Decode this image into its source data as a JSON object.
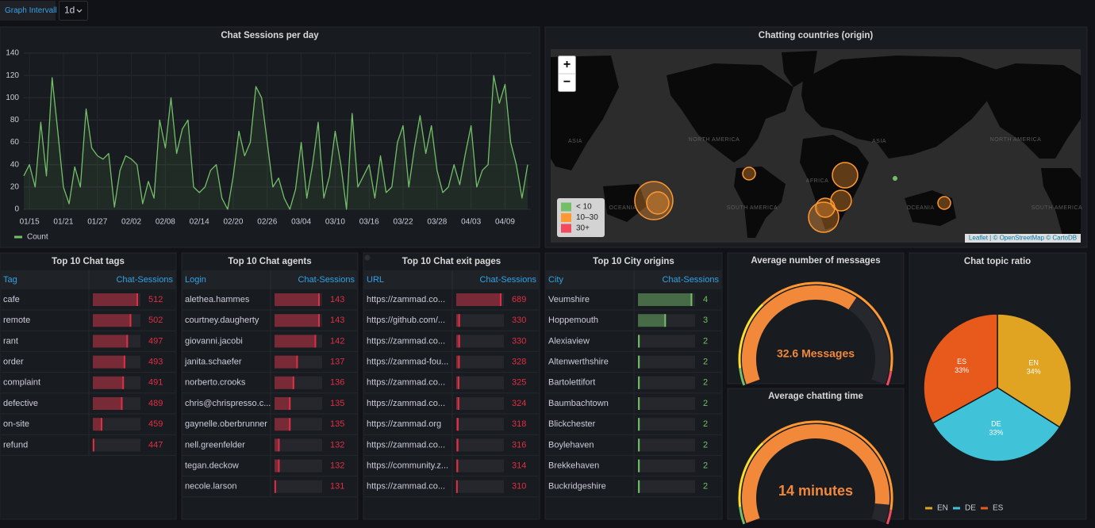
{
  "header": {
    "label": "Graph Intervall",
    "interval": "1d"
  },
  "chart_data": {
    "type": "line",
    "title": "Chat Sessions per day",
    "x": [
      "01/14",
      "01/15",
      "01/16",
      "01/17",
      "01/18",
      "01/19",
      "01/20",
      "01/21",
      "01/22",
      "01/23",
      "01/24",
      "01/25",
      "01/26",
      "01/27",
      "01/28",
      "01/29",
      "01/30",
      "01/31",
      "02/01",
      "02/02",
      "02/03",
      "02/04",
      "02/05",
      "02/06",
      "02/07",
      "02/08",
      "02/09",
      "02/10",
      "02/11",
      "02/12",
      "02/13",
      "02/14",
      "02/15",
      "02/16",
      "02/17",
      "02/18",
      "02/19",
      "02/20",
      "02/21",
      "02/22",
      "02/23",
      "02/24",
      "02/25",
      "02/26",
      "02/27",
      "02/28",
      "03/01",
      "03/02",
      "03/03",
      "03/04",
      "03/05",
      "03/06",
      "03/07",
      "03/08",
      "03/09",
      "03/10",
      "03/11",
      "03/12",
      "03/13",
      "03/14",
      "03/15",
      "03/16",
      "03/17",
      "03/18",
      "03/19",
      "03/20",
      "03/21",
      "03/22",
      "03/23",
      "03/24",
      "03/25",
      "03/26",
      "03/27",
      "03/28",
      "03/29",
      "03/30",
      "03/31",
      "04/01",
      "04/02",
      "04/03",
      "04/04",
      "04/05",
      "04/06",
      "04/07",
      "04/08",
      "04/09",
      "04/10",
      "04/11",
      "04/12",
      "04/13"
    ],
    "xticks": [
      "01/15",
      "01/21",
      "01/27",
      "02/02",
      "02/08",
      "02/14",
      "02/20",
      "02/26",
      "03/04",
      "03/10",
      "03/16",
      "03/22",
      "03/28",
      "04/03",
      "04/09"
    ],
    "ylim": [
      0,
      140
    ],
    "yticks": [
      0,
      20,
      40,
      60,
      80,
      100,
      120,
      140
    ],
    "grid": true,
    "series": [
      {
        "name": "Count",
        "color": "#73bf69",
        "values": [
          30,
          40,
          20,
          78,
          30,
          118,
          70,
          20,
          5,
          38,
          20,
          90,
          55,
          48,
          45,
          50,
          2,
          35,
          48,
          45,
          40,
          5,
          25,
          10,
          80,
          55,
          100,
          50,
          72,
          80,
          20,
          15,
          20,
          35,
          40,
          10,
          0,
          30,
          70,
          48,
          60,
          110,
          100,
          60,
          20,
          28,
          10,
          0,
          18,
          60,
          10,
          40,
          78,
          10,
          30,
          70,
          40,
          0,
          86,
          20,
          30,
          40,
          10,
          48,
          15,
          20,
          60,
          75,
          20,
          55,
          84,
          50,
          75,
          35,
          15,
          20,
          40,
          22,
          50,
          75,
          20,
          35,
          40,
          120,
          95,
          112,
          60,
          40,
          10,
          40
        ]
      }
    ]
  },
  "map": {
    "title": "Chatting countries (origin)",
    "zoom_in": "+",
    "zoom_out": "−",
    "regions": [
      "ASIA",
      "OCEANIA",
      "NORTH AMERICA",
      "SOUTH AMERICA",
      "AFRICA",
      "ASIA",
      "OCEANIA",
      "NORTH AMERICA",
      "SOUTH AMERICA"
    ],
    "legend": [
      {
        "label": "< 10",
        "color": "#73bf69"
      },
      {
        "label": "10–30",
        "color": "#ff9830"
      },
      {
        "label": "30+",
        "color": "#f2495c"
      }
    ],
    "attribution": "Leaflet | © OpenStreetMap © CartoDB"
  },
  "tables": [
    {
      "title": "Top 10 Chat tags",
      "columns": [
        "Tag",
        "Chat-Sessions"
      ],
      "color": "#e02f44",
      "rows": [
        [
          "cafe",
          512
        ],
        [
          "remote",
          502
        ],
        [
          "rant",
          497
        ],
        [
          "order",
          493
        ],
        [
          "complaint",
          491
        ],
        [
          "defective",
          489
        ],
        [
          "on-site",
          459
        ],
        [
          "refund",
          447
        ]
      ]
    },
    {
      "title": "Top 10 Chat agents",
      "columns": [
        "Login",
        "Chat-Sessions"
      ],
      "color": "#e02f44",
      "rows": [
        [
          "alethea.hammes",
          143
        ],
        [
          "courtney.daugherty",
          143
        ],
        [
          "giovanni.jacobi",
          142
        ],
        [
          "janita.schaefer",
          137
        ],
        [
          "norberto.crooks",
          136
        ],
        [
          "chris@chrispresso.c...",
          135
        ],
        [
          "gaynelle.oberbrunner",
          135
        ],
        [
          "nell.greenfelder",
          132
        ],
        [
          "tegan.deckow",
          132
        ],
        [
          "necole.larson",
          131
        ]
      ]
    },
    {
      "title": "Top 10 Chat exit pages",
      "columns": [
        "URL",
        "Chat-Sessions"
      ],
      "color": "#e02f44",
      "rows": [
        [
          "https://zammad.co...",
          689
        ],
        [
          "https://github.com/...",
          330
        ],
        [
          "https://zammad.co...",
          330
        ],
        [
          "https://zammad-fou...",
          328
        ],
        [
          "https://zammad.co...",
          325
        ],
        [
          "https://zammad.co...",
          324
        ],
        [
          "https://zammad.org",
          318
        ],
        [
          "https://zammad.co...",
          316
        ],
        [
          "https://community.z...",
          314
        ],
        [
          "https://zammad.co...",
          310
        ]
      ]
    },
    {
      "title": "Top 10 City origins",
      "columns": [
        "City",
        "Chat-Sessions"
      ],
      "color": "#73bf69",
      "rows": [
        [
          "Veumshire",
          4
        ],
        [
          "Hoppemouth",
          3
        ],
        [
          "Alexiaview",
          2
        ],
        [
          "Altenwerthshire",
          2
        ],
        [
          "Bartolettifort",
          2
        ],
        [
          "Baumbachtown",
          2
        ],
        [
          "Blickchester",
          2
        ],
        [
          "Boylehaven",
          2
        ],
        [
          "Brekkehaven",
          2
        ],
        [
          "Buckridgeshire",
          2
        ]
      ]
    }
  ],
  "gauges": [
    {
      "title": "Average number of messages",
      "value": 32.6,
      "value_label": "32.6 Messages",
      "range": [
        0,
        50
      ],
      "color": "#f2883a"
    },
    {
      "title": "Average chatting time",
      "value": 14,
      "value_label": "14 minutes",
      "range": [
        0,
        15
      ],
      "color": "#f2883a"
    }
  ],
  "pie": {
    "type": "pie",
    "title": "Chat topic ratio",
    "categories": [
      "EN",
      "DE",
      "ES"
    ],
    "values": [
      34,
      33,
      33
    ],
    "value_labels": [
      "34%",
      "33%",
      "33%"
    ],
    "colors": [
      "#e0a322",
      "#40c3d8",
      "#e8591c"
    ]
  }
}
